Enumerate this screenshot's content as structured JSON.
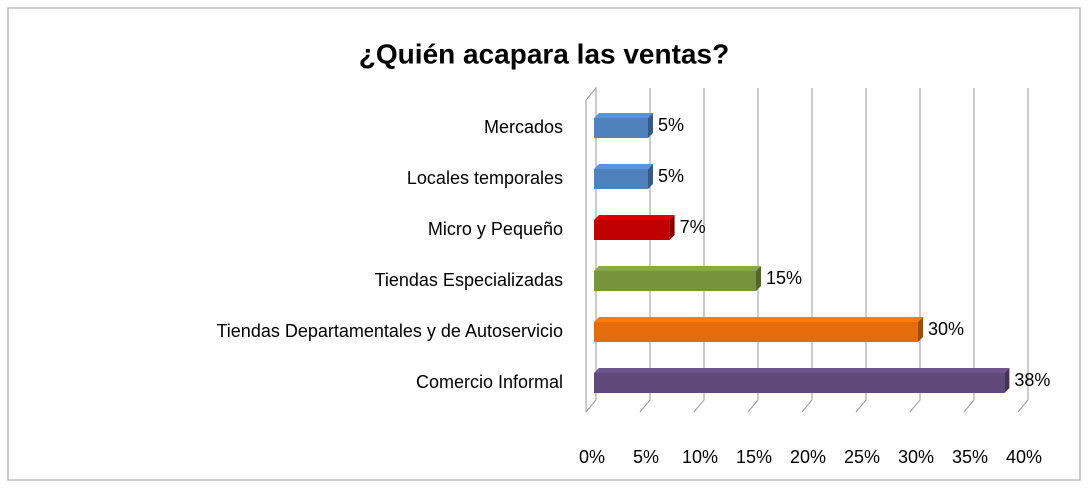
{
  "chart_data": {
    "type": "bar",
    "orientation": "horizontal",
    "title": "¿Quién acapara las ventas?",
    "categories": [
      "Mercados",
      "Locales temporales",
      "Micro y Pequeño",
      "Tiendas Especializadas",
      "Tiendas Departamentales y de Autoservicio",
      "Comercio Informal"
    ],
    "values": [
      5,
      5,
      7,
      15,
      30,
      38
    ],
    "value_labels": [
      "5%",
      "5%",
      "7%",
      "15%",
      "30%",
      "38%"
    ],
    "colors": [
      "#4f81bd",
      "#4f81bd",
      "#c00000",
      "#77933c",
      "#e46c0a",
      "#604a7b"
    ],
    "xlim": [
      0,
      40
    ],
    "xticks": [
      {
        "value": 0,
        "label": "0%"
      },
      {
        "value": 5,
        "label": "5%"
      },
      {
        "value": 10,
        "label": "10%"
      },
      {
        "value": 15,
        "label": "15%"
      },
      {
        "value": 20,
        "label": "20%"
      },
      {
        "value": 25,
        "label": "25%"
      },
      {
        "value": 30,
        "label": "30%"
      },
      {
        "value": 35,
        "label": "35%"
      },
      {
        "value": 40,
        "label": "40%"
      }
    ],
    "grid": true
  }
}
